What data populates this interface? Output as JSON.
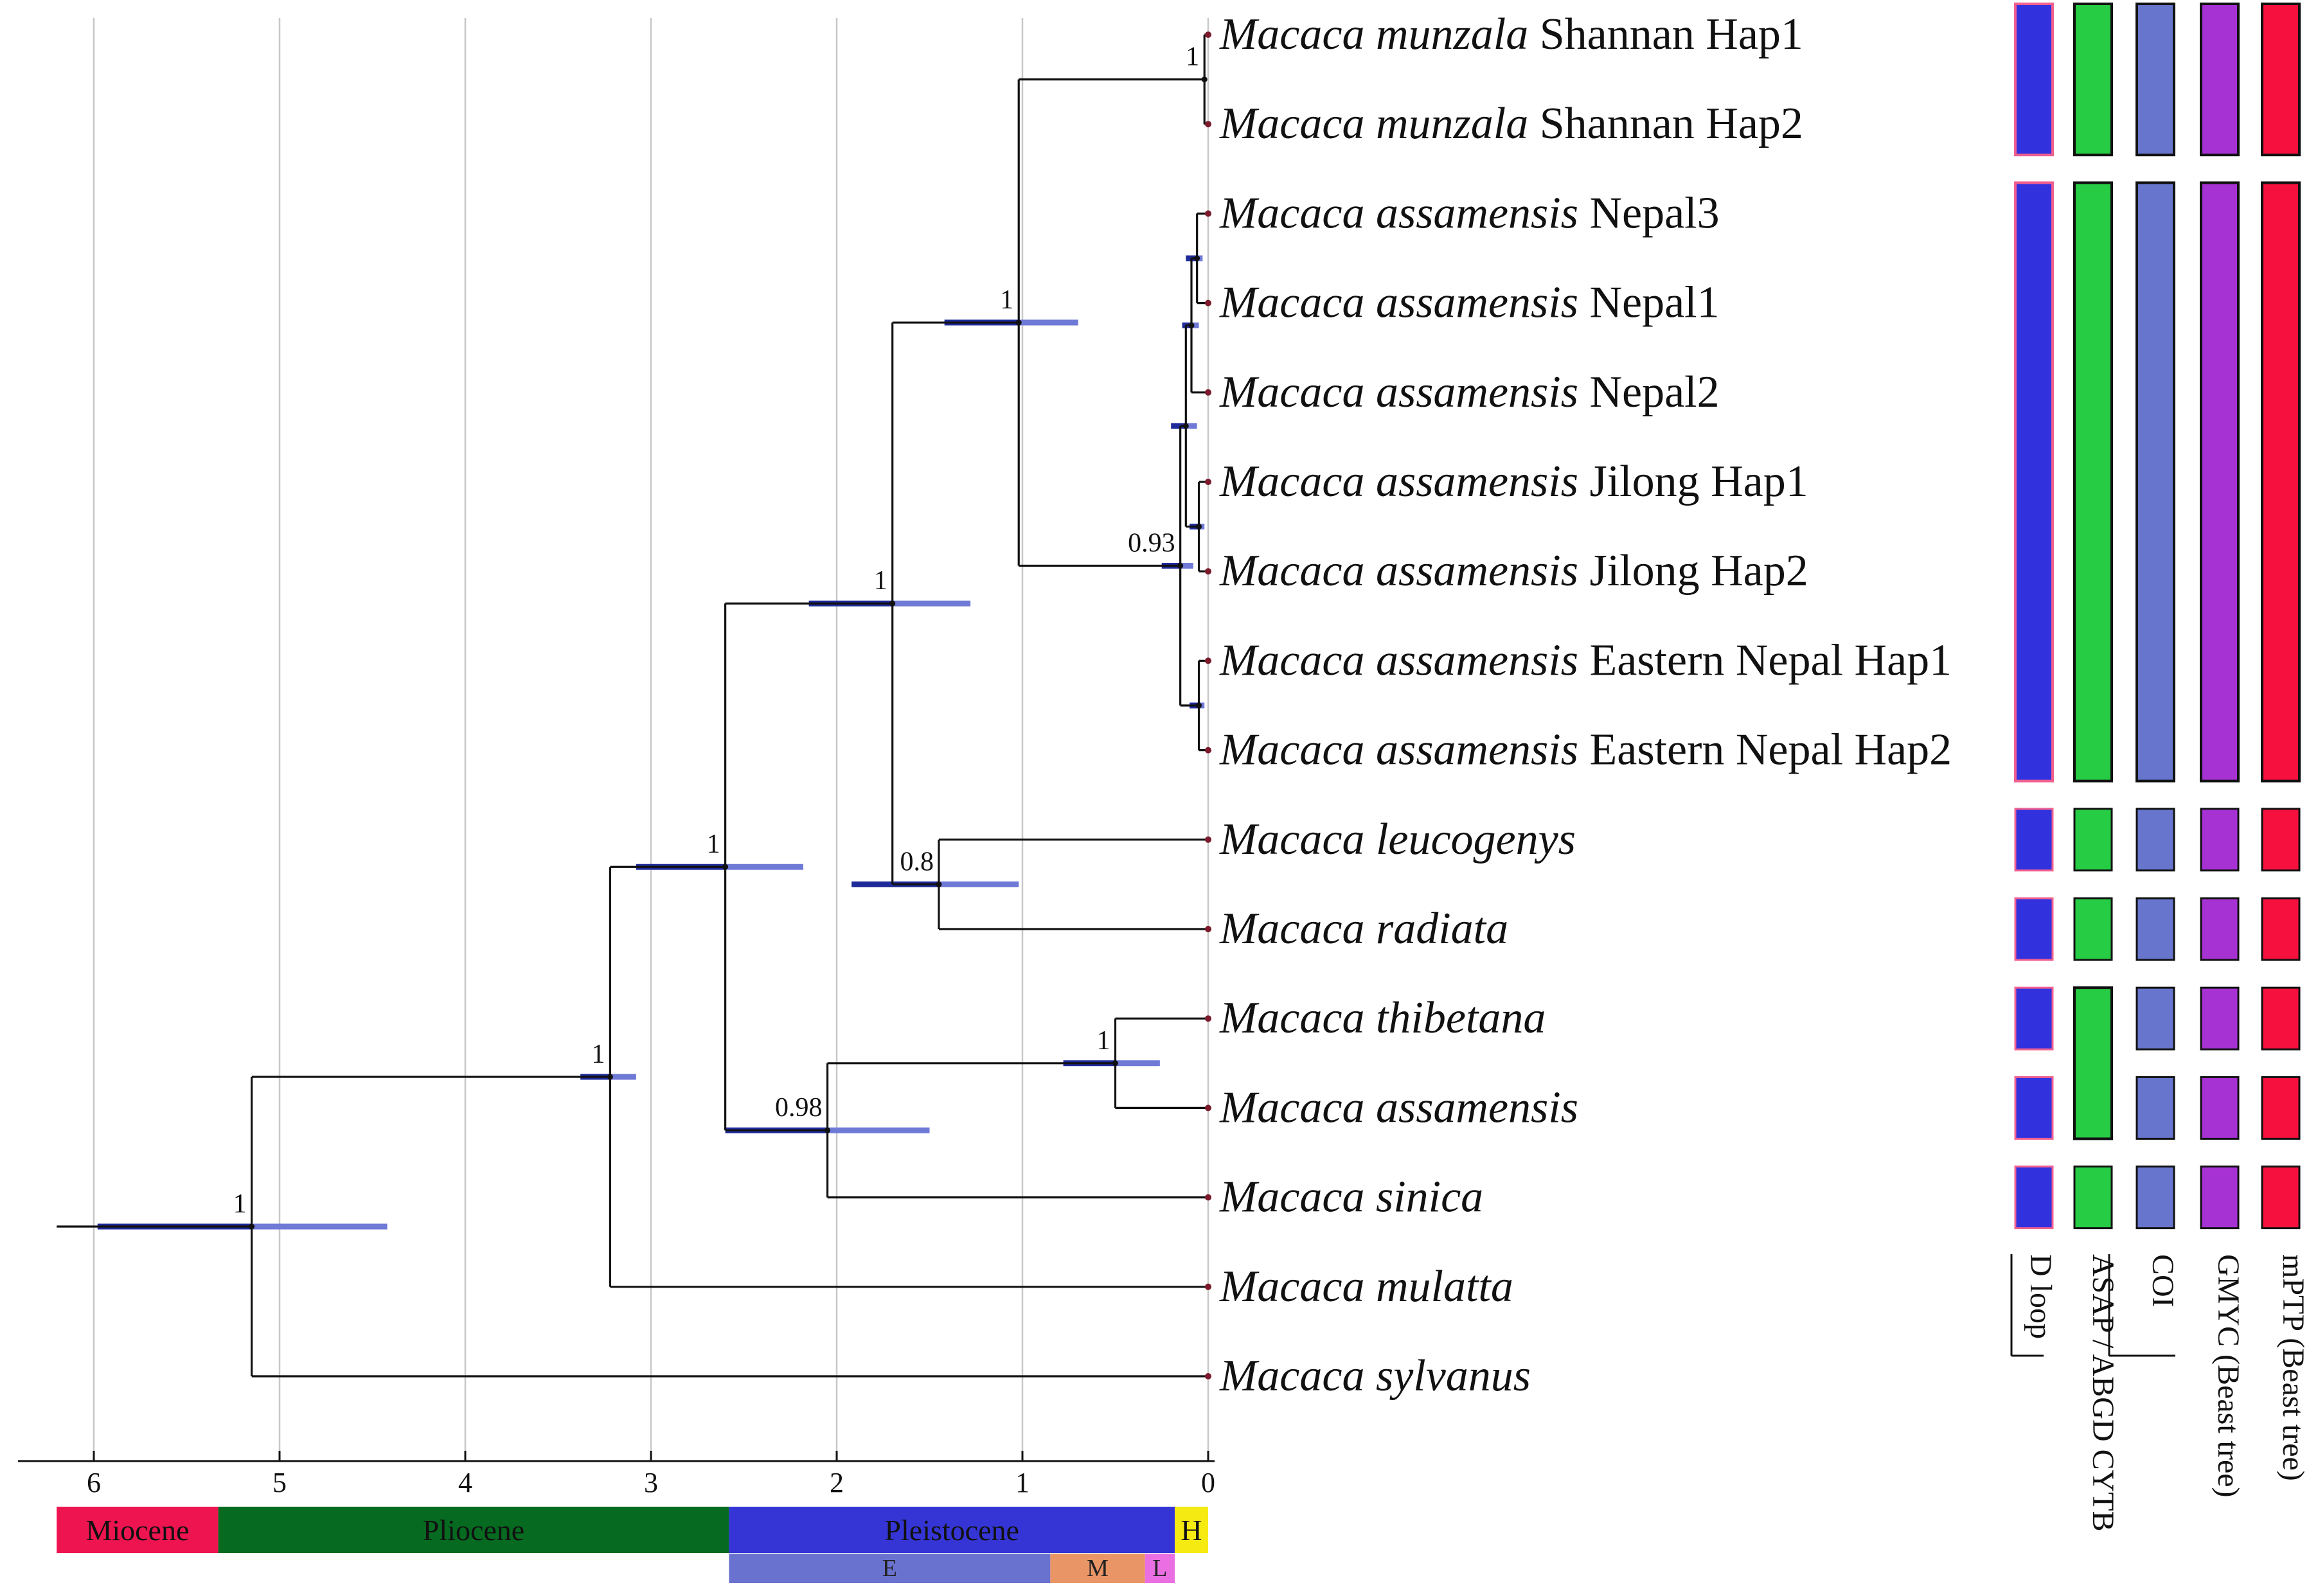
{
  "tree": {
    "root_age": 6.2,
    "leaves": [
      {
        "genus": "Macaca munzala",
        "suffix": " Shannan Hap1"
      },
      {
        "genus": "Macaca munzala",
        "suffix": " Shannan Hap2"
      },
      {
        "genus": "Macaca assamensis",
        "suffix": " Nepal3"
      },
      {
        "genus": "Macaca assamensis",
        "suffix": " Nepal1"
      },
      {
        "genus": "Macaca assamensis",
        "suffix": " Nepal2"
      },
      {
        "genus": "Macaca assamensis",
        "suffix": " Jilong Hap1"
      },
      {
        "genus": "Macaca assamensis",
        "suffix": " Jilong Hap2"
      },
      {
        "genus": "Macaca assamensis",
        "suffix": " Eastern Nepal Hap1"
      },
      {
        "genus": "Macaca assamensis",
        "suffix": " Eastern Nepal Hap2"
      },
      {
        "genus": "Macaca leucogenys",
        "suffix": ""
      },
      {
        "genus": "Macaca radiata",
        "suffix": ""
      },
      {
        "genus": "Macaca thibetana",
        "suffix": ""
      },
      {
        "genus": "Macaca assamensis",
        "suffix": ""
      },
      {
        "genus": "Macaca sinica",
        "suffix": ""
      },
      {
        "genus": "Macaca mulatta",
        "suffix": ""
      },
      {
        "genus": "Macaca sylvanus",
        "suffix": ""
      }
    ],
    "nodes": [
      {
        "id": "n_mun",
        "age": 0.02,
        "children": [
          0,
          1
        ],
        "support": "1",
        "hpd": null
      },
      {
        "id": "n_n31",
        "age": 0.06,
        "children": [
          2,
          3
        ],
        "support": "",
        "hpd": [
          0.12,
          0.03
        ]
      },
      {
        "id": "n_n312",
        "age": 0.09,
        "children": [
          "n_n31",
          4
        ],
        "support": "",
        "hpd": [
          0.14,
          0.05
        ]
      },
      {
        "id": "n_jil",
        "age": 0.05,
        "children": [
          5,
          6
        ],
        "support": "",
        "hpd": [
          0.1,
          0.02
        ]
      },
      {
        "id": "n_nep",
        "age": 0.12,
        "children": [
          "n_n312",
          "n_jil"
        ],
        "support": "",
        "hpd": [
          0.2,
          0.06
        ]
      },
      {
        "id": "n_en",
        "age": 0.05,
        "children": [
          7,
          8
        ],
        "support": "",
        "hpd": [
          0.1,
          0.02
        ]
      },
      {
        "id": "n_ass",
        "age": 0.15,
        "children": [
          "n_nep",
          "n_en"
        ],
        "support": "0.93",
        "hpd": [
          0.25,
          0.08
        ]
      },
      {
        "id": "n_mun_ass",
        "age": 1.02,
        "children": [
          "n_mun",
          "n_ass"
        ],
        "support": "1",
        "hpd": [
          1.42,
          0.7
        ]
      },
      {
        "id": "n_leu_rad",
        "age": 1.45,
        "children": [
          9,
          10
        ],
        "support": "0.8",
        "hpd": [
          1.92,
          1.02
        ]
      },
      {
        "id": "n_sinica_grp",
        "age": 1.7,
        "children": [
          "n_mun_ass",
          "n_leu_rad"
        ],
        "support": "1",
        "hpd": [
          2.15,
          1.28
        ]
      },
      {
        "id": "n_thib_ass",
        "age": 0.5,
        "children": [
          11,
          12
        ],
        "support": "1",
        "hpd": [
          0.78,
          0.26
        ]
      },
      {
        "id": "n_sin",
        "age": 2.05,
        "children": [
          "n_thib_ass",
          13
        ],
        "support": "0.98",
        "hpd": [
          2.6,
          1.5
        ]
      },
      {
        "id": "n_mid",
        "age": 2.6,
        "children": [
          "n_sinica_grp",
          "n_sin"
        ],
        "support": "1",
        "hpd": [
          3.08,
          2.18
        ]
      },
      {
        "id": "n_mul",
        "age": 3.22,
        "children": [
          "n_mid",
          14
        ],
        "support": "1",
        "hpd": [
          3.38,
          3.08
        ]
      },
      {
        "id": "n_root",
        "age": 5.15,
        "children": [
          "n_mul",
          15
        ],
        "support": "1",
        "hpd": [
          5.98,
          4.42
        ]
      }
    ]
  },
  "axis": {
    "ticks": [
      6,
      5,
      4,
      3,
      2,
      1,
      0
    ],
    "tick_labels": [
      "6",
      "5",
      "4",
      "3",
      "2",
      "1",
      "0"
    ]
  },
  "epochs": [
    {
      "name": "Miocene",
      "start": 6.2,
      "end": 5.33,
      "color": "#ee1450"
    },
    {
      "name": "Pliocene",
      "start": 5.33,
      "end": 2.58,
      "color": "#066b20"
    },
    {
      "name": "Pleistocene",
      "start": 2.58,
      "end": 0.18,
      "color": "#3535d6"
    },
    {
      "name": "H",
      "start": 0.18,
      "end": 0.0,
      "color": "#f6ea13"
    }
  ],
  "sub_epochs": [
    {
      "name": "E",
      "start": 2.58,
      "end": 0.85,
      "color": "#6a72cf"
    },
    {
      "name": "M",
      "start": 0.85,
      "end": 0.34,
      "color": "#ea9566"
    },
    {
      "name": "L",
      "start": 0.34,
      "end": 0.18,
      "color": "#ea6fe2"
    }
  ],
  "methods": [
    {
      "name": "D loop",
      "color": "#3131de"
    },
    {
      "name": "ASAP / ABGD CYTB",
      "color": "#27cc45"
    },
    {
      "name": "COI",
      "color": "#6775cd"
    },
    {
      "name": "GMYC (Beast tree)",
      "color": "#a732d4"
    },
    {
      "name": "mPTP (Beast tree)",
      "color": "#f5103d"
    }
  ],
  "method_groups": [
    [
      {
        "from": 0,
        "to": 1
      },
      {
        "from": 2,
        "to": 8
      },
      {
        "from": 9,
        "to": 9
      },
      {
        "from": 10,
        "to": 10
      },
      {
        "from": 11,
        "to": 11
      },
      {
        "from": 12,
        "to": 12
      },
      {
        "from": 13,
        "to": 13
      }
    ],
    [
      {
        "from": 0,
        "to": 1
      },
      {
        "from": 2,
        "to": 8
      },
      {
        "from": 9,
        "to": 9
      },
      {
        "from": 10,
        "to": 10
      },
      {
        "from": 11,
        "to": 12
      },
      {
        "from": 13,
        "to": 13
      }
    ],
    [
      {
        "from": 0,
        "to": 1
      },
      {
        "from": 2,
        "to": 8
      },
      {
        "from": 9,
        "to": 9
      },
      {
        "from": 10,
        "to": 10
      },
      {
        "from": 11,
        "to": 11
      },
      {
        "from": 12,
        "to": 12
      },
      {
        "from": 13,
        "to": 13
      }
    ],
    [
      {
        "from": 0,
        "to": 1
      },
      {
        "from": 2,
        "to": 8
      },
      {
        "from": 9,
        "to": 9
      },
      {
        "from": 10,
        "to": 10
      },
      {
        "from": 11,
        "to": 11
      },
      {
        "from": 12,
        "to": 12
      },
      {
        "from": 13,
        "to": 13
      }
    ],
    [
      {
        "from": 0,
        "to": 1
      },
      {
        "from": 2,
        "to": 8
      },
      {
        "from": 9,
        "to": 9
      },
      {
        "from": 10,
        "to": 10
      },
      {
        "from": 11,
        "to": 11
      },
      {
        "from": 12,
        "to": 12
      },
      {
        "from": 13,
        "to": 13
      }
    ]
  ],
  "colors": {
    "branch": "#111111",
    "hpd_dark": "#1f2a9a",
    "hpd_light": "#6f7ad6",
    "grid": "#c8c8c8",
    "tip": "#7a1a2a",
    "pink_outline": "#f06090"
  }
}
